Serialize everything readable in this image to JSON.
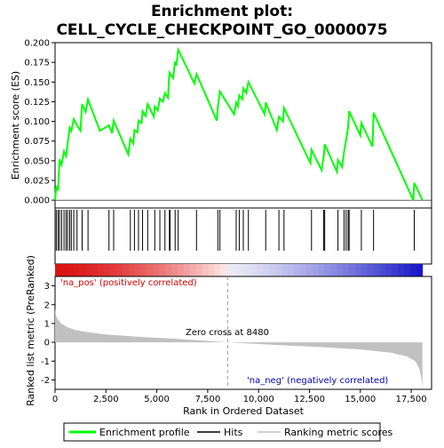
{
  "chart_data": {
    "type": "line",
    "title_line1": "Enrichment plot:",
    "title_line2": "CELL_CYCLE_CHECKPOINT_GO_0000075",
    "es_panel": {
      "ylabel": "Enrichment score (ES)",
      "ylim": [
        -0.01,
        0.2
      ],
      "yticks": [
        "0.000",
        "0.025",
        "0.050",
        "0.075",
        "0.100",
        "0.125",
        "0.150",
        "0.175",
        "0.200"
      ],
      "ytick_values": [
        0,
        0.025,
        0.05,
        0.075,
        0.1,
        0.125,
        0.15,
        0.175,
        0.2
      ],
      "line_color": "#00ff00",
      "profile": [
        [
          0,
          0.0
        ],
        [
          60,
          0.018
        ],
        [
          150,
          0.012
        ],
        [
          220,
          0.052
        ],
        [
          320,
          0.045
        ],
        [
          440,
          0.062
        ],
        [
          540,
          0.056
        ],
        [
          620,
          0.072
        ],
        [
          720,
          0.092
        ],
        [
          800,
          0.088
        ],
        [
          920,
          0.103
        ],
        [
          1080,
          0.095
        ],
        [
          1250,
          0.088
        ],
        [
          1330,
          0.122
        ],
        [
          1500,
          0.112
        ],
        [
          1620,
          0.128
        ],
        [
          2200,
          0.088
        ],
        [
          2650,
          0.095
        ],
        [
          2800,
          0.085
        ],
        [
          2880,
          0.101
        ],
        [
          3600,
          0.058
        ],
        [
          3700,
          0.078
        ],
        [
          3850,
          0.072
        ],
        [
          3900,
          0.089
        ],
        [
          4050,
          0.086
        ],
        [
          4100,
          0.101
        ],
        [
          4250,
          0.098
        ],
        [
          4300,
          0.113
        ],
        [
          4450,
          0.107
        ],
        [
          4550,
          0.122
        ],
        [
          4850,
          0.106
        ],
        [
          4900,
          0.119
        ],
        [
          5050,
          0.114
        ],
        [
          5150,
          0.129
        ],
        [
          5300,
          0.125
        ],
        [
          5400,
          0.136
        ],
        [
          5550,
          0.13
        ],
        [
          5620,
          0.162
        ],
        [
          5800,
          0.155
        ],
        [
          5900,
          0.176
        ],
        [
          5960,
          0.171
        ],
        [
          6050,
          0.191
        ],
        [
          6850,
          0.148
        ],
        [
          6950,
          0.16
        ],
        [
          7950,
          0.101
        ],
        [
          8000,
          0.119
        ],
        [
          8100,
          0.138
        ],
        [
          8800,
          0.109
        ],
        [
          8900,
          0.124
        ],
        [
          8980,
          0.119
        ],
        [
          9050,
          0.133
        ],
        [
          9200,
          0.128
        ],
        [
          9250,
          0.142
        ],
        [
          9400,
          0.136
        ],
        [
          9500,
          0.15
        ],
        [
          10300,
          0.109
        ],
        [
          10350,
          0.124
        ],
        [
          10900,
          0.089
        ],
        [
          11000,
          0.106
        ],
        [
          11200,
          0.1
        ],
        [
          11250,
          0.117
        ],
        [
          12550,
          0.047
        ],
        [
          12600,
          0.064
        ],
        [
          13100,
          0.038
        ],
        [
          13200,
          0.055
        ],
        [
          13250,
          0.071
        ],
        [
          13850,
          0.036
        ],
        [
          13900,
          0.051
        ],
        [
          14100,
          0.042
        ],
        [
          14200,
          0.061
        ],
        [
          14300,
          0.076
        ],
        [
          14400,
          0.093
        ],
        [
          14450,
          0.113
        ],
        [
          15000,
          0.082
        ],
        [
          15050,
          0.098
        ],
        [
          15600,
          0.068
        ],
        [
          15650,
          0.111
        ],
        [
          17600,
          0.0
        ],
        [
          17650,
          0.022
        ],
        [
          18050,
          0.0
        ]
      ]
    },
    "hits_panel": {
      "hit_positions": [
        60,
        150,
        220,
        320,
        440,
        540,
        620,
        720,
        800,
        920,
        1080,
        1330,
        1620,
        2650,
        2880,
        3700,
        3900,
        4100,
        4300,
        4550,
        4900,
        5150,
        5400,
        5620,
        5650,
        5900,
        6050,
        6950,
        8000,
        8100,
        8900,
        9050,
        9250,
        9500,
        10350,
        11000,
        11250,
        12600,
        13200,
        13250,
        13900,
        14200,
        14300,
        14400,
        14450,
        15050,
        15650,
        17650
      ]
    },
    "metric_panel": {
      "ylabel": "Ranked list metric (PreRanked)",
      "ylim": [
        -2.5,
        3.5
      ],
      "yticks": [
        "3",
        "2",
        "1",
        "0",
        "-1",
        "-2"
      ],
      "ytick_values": [
        3,
        2,
        1,
        0,
        -1,
        -2
      ],
      "fill_color": "#c0c0c0",
      "metric_curve": [
        [
          0,
          1.8
        ],
        [
          50,
          1.4
        ],
        [
          150,
          1.2
        ],
        [
          300,
          1.0
        ],
        [
          600,
          0.8
        ],
        [
          1000,
          0.65
        ],
        [
          1500,
          0.55
        ],
        [
          2500,
          0.42
        ],
        [
          4000,
          0.3
        ],
        [
          6000,
          0.18
        ],
        [
          8480,
          0.0
        ],
        [
          11000,
          -0.15
        ],
        [
          13000,
          -0.25
        ],
        [
          15000,
          -0.38
        ],
        [
          16500,
          -0.55
        ],
        [
          17300,
          -0.75
        ],
        [
          17700,
          -1.0
        ],
        [
          17900,
          -1.4
        ],
        [
          18000,
          -1.9
        ],
        [
          18050,
          -2.4
        ]
      ],
      "pos_label": "'na_pos' (positively correlated)",
      "neg_label": "'na_neg' (negatively correlated)",
      "zero_cross_label": "Zero cross at 8480",
      "zero_cross": 8480
    },
    "xlabel": "Rank in Ordered Dataset",
    "xlim": [
      0,
      18500
    ],
    "xticks": [
      "0",
      "2,500",
      "5,000",
      "7,500",
      "10,000",
      "12,500",
      "15,000",
      "17,500"
    ],
    "xtick_values": [
      0,
      2500,
      5000,
      7500,
      10000,
      12500,
      15000,
      17500
    ],
    "n_genes": 18050,
    "legend": {
      "items": [
        {
          "label": "Enrichment profile",
          "color": "#00ff00"
        },
        {
          "label": "Hits",
          "color": "#000000"
        },
        {
          "label": "Ranking metric scores",
          "color": "#c0c0c0"
        }
      ]
    }
  }
}
